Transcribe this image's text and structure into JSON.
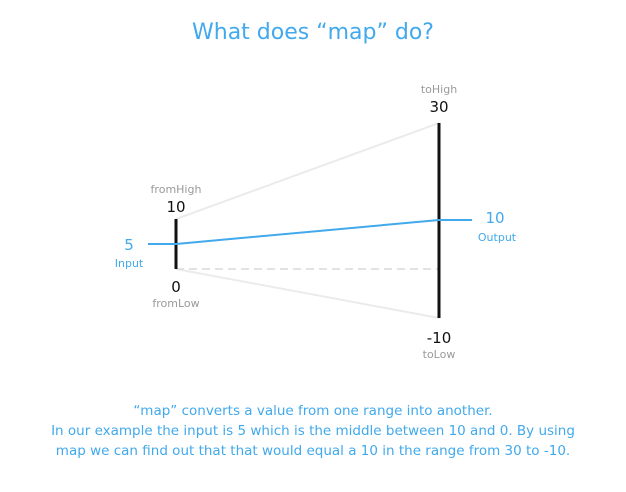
{
  "title": "What does “map” do?",
  "input": {
    "value": "5",
    "label": "Input"
  },
  "output": {
    "value": "10",
    "label": "Output"
  },
  "from_range": {
    "high_label": "fromHigh",
    "high_value": "10",
    "low_value": "0",
    "low_label": "fromLow"
  },
  "to_range": {
    "high_label": "toHigh",
    "high_value": "30",
    "low_value": "-10",
    "low_label": "toLow"
  },
  "description": [
    "“map” converts a value from one range into another.",
    "In our example the input is 5 which is the middle between 10 and 0. By using",
    "map we can find out that that would equal a 10 in the range from 30 to -10."
  ],
  "colors": {
    "accent": "#41a9ec",
    "axis": "#111111",
    "guide": "#ebebeb",
    "caption": "#9a9a9a"
  }
}
